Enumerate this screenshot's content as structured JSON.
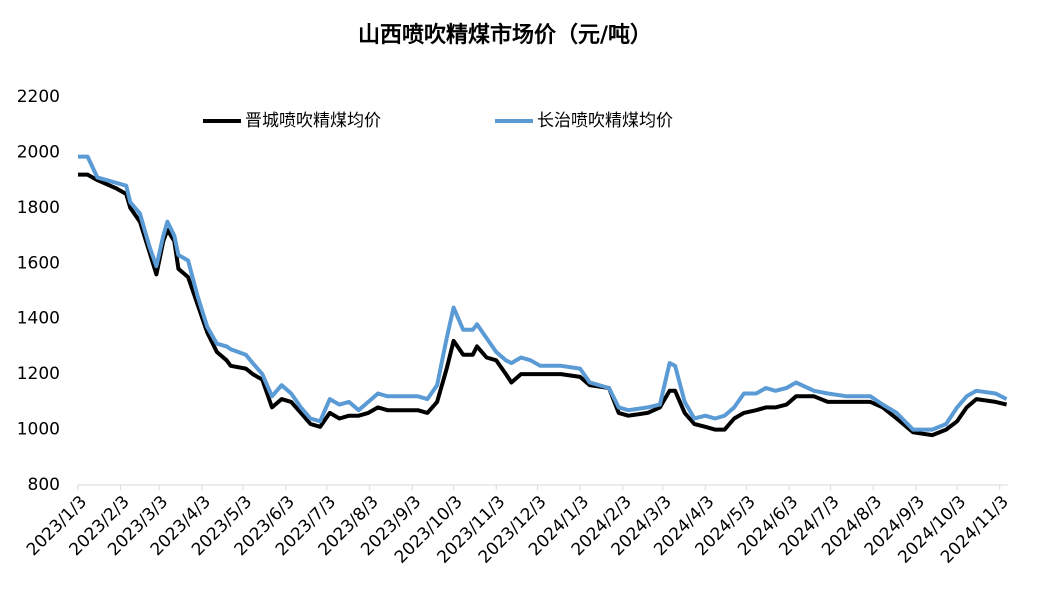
{
  "chart_data": {
    "type": "line",
    "title": "山西喷吹精煤市场价（元/吨）",
    "x": [
      "2023/1/3",
      "2023/1/10",
      "2023/1/17",
      "2023/1/31",
      "2023/2/7",
      "2023/2/10",
      "2023/2/17",
      "2023/2/24",
      "2023/3/1",
      "2023/3/6",
      "2023/3/9",
      "2023/3/14",
      "2023/3/17",
      "2023/3/24",
      "2023/3/31",
      "2023/4/7",
      "2023/4/14",
      "2023/4/21",
      "2023/4/24",
      "2023/5/5",
      "2023/5/10",
      "2023/5/17",
      "2023/5/24",
      "2023/5/31",
      "2023/6/7",
      "2023/6/14",
      "2023/6/21",
      "2023/6/28",
      "2023/7/5",
      "2023/7/12",
      "2023/7/19",
      "2023/7/26",
      "2023/8/2",
      "2023/8/9",
      "2023/8/16",
      "2023/8/31",
      "2023/9/7",
      "2023/9/14",
      "2023/9/21",
      "2023/9/28",
      "2023/10/3",
      "2023/10/10",
      "2023/10/17",
      "2023/10/20",
      "2023/10/27",
      "2023/11/3",
      "2023/11/10",
      "2023/11/14",
      "2023/11/21",
      "2023/11/28",
      "2023/12/5",
      "2023/12/20",
      "2024/1/3",
      "2024/1/10",
      "2024/1/24",
      "2024/1/31",
      "2024/2/7",
      "2024/2/21",
      "2024/3/1",
      "2024/3/8",
      "2024/3/12",
      "2024/3/19",
      "2024/3/26",
      "2024/4/3",
      "2024/4/10",
      "2024/4/17",
      "2024/4/24",
      "2024/5/1",
      "2024/5/10",
      "2024/5/17",
      "2024/5/24",
      "2024/6/1",
      "2024/6/8",
      "2024/6/21",
      "2024/7/1",
      "2024/7/15",
      "2024/8/1",
      "2024/8/10",
      "2024/8/20",
      "2024/9/1",
      "2024/9/15",
      "2024/9/25",
      "2024/10/3",
      "2024/10/10",
      "2024/10/17",
      "2024/10/31",
      "2024/11/8"
    ],
    "series": [
      {
        "name": "晋城喷吹精煤均价",
        "color": "#000000",
        "values": [
          1920,
          1920,
          1900,
          1870,
          1850,
          1800,
          1750,
          1640,
          1560,
          1680,
          1720,
          1680,
          1580,
          1550,
          1450,
          1350,
          1280,
          1250,
          1230,
          1220,
          1200,
          1180,
          1080,
          1110,
          1100,
          1060,
          1020,
          1010,
          1060,
          1040,
          1050,
          1050,
          1060,
          1080,
          1070,
          1070,
          1070,
          1060,
          1100,
          1220,
          1320,
          1270,
          1270,
          1300,
          1260,
          1250,
          1200,
          1170,
          1200,
          1200,
          1200,
          1200,
          1190,
          1160,
          1150,
          1060,
          1050,
          1060,
          1080,
          1140,
          1140,
          1060,
          1020,
          1010,
          1000,
          1000,
          1040,
          1060,
          1070,
          1080,
          1080,
          1090,
          1120,
          1120,
          1100,
          1100,
          1100,
          1080,
          1040,
          990,
          980,
          1000,
          1030,
          1080,
          1110,
          1100,
          1090
        ]
      },
      {
        "name": "长治喷吹精煤均价",
        "color": "#5b9bd5",
        "values": [
          1985,
          1985,
          1910,
          1890,
          1880,
          1820,
          1780,
          1660,
          1590,
          1700,
          1750,
          1700,
          1630,
          1610,
          1480,
          1370,
          1310,
          1300,
          1290,
          1270,
          1240,
          1200,
          1120,
          1160,
          1130,
          1080,
          1040,
          1030,
          1110,
          1090,
          1100,
          1070,
          1100,
          1130,
          1120,
          1120,
          1120,
          1110,
          1160,
          1330,
          1440,
          1360,
          1360,
          1380,
          1330,
          1280,
          1250,
          1240,
          1260,
          1250,
          1230,
          1230,
          1220,
          1170,
          1150,
          1080,
          1070,
          1080,
          1090,
          1240,
          1230,
          1100,
          1040,
          1050,
          1040,
          1050,
          1080,
          1130,
          1130,
          1150,
          1140,
          1150,
          1170,
          1140,
          1130,
          1120,
          1120,
          1090,
          1060,
          1000,
          1000,
          1020,
          1080,
          1120,
          1140,
          1130,
          1110
        ]
      }
    ],
    "xlim": [
      "2023/1/3",
      "2024/11/9"
    ],
    "xticks": [
      "2023/1/3",
      "2023/2/3",
      "2023/3/3",
      "2023/4/3",
      "2023/5/3",
      "2023/6/3",
      "2023/7/3",
      "2023/8/3",
      "2023/9/3",
      "2023/10/3",
      "2023/11/3",
      "2023/12/3",
      "2024/1/3",
      "2024/2/3",
      "2024/3/3",
      "2024/4/3",
      "2024/5/3",
      "2024/6/3",
      "2024/7/3",
      "2024/8/3",
      "2024/9/3",
      "2024/10/3",
      "2024/11/3"
    ],
    "ylim": [
      800,
      2200
    ],
    "yticks": [
      800,
      1000,
      1200,
      1400,
      1600,
      1800,
      2000,
      2200
    ],
    "grid": false,
    "legend": "top"
  }
}
